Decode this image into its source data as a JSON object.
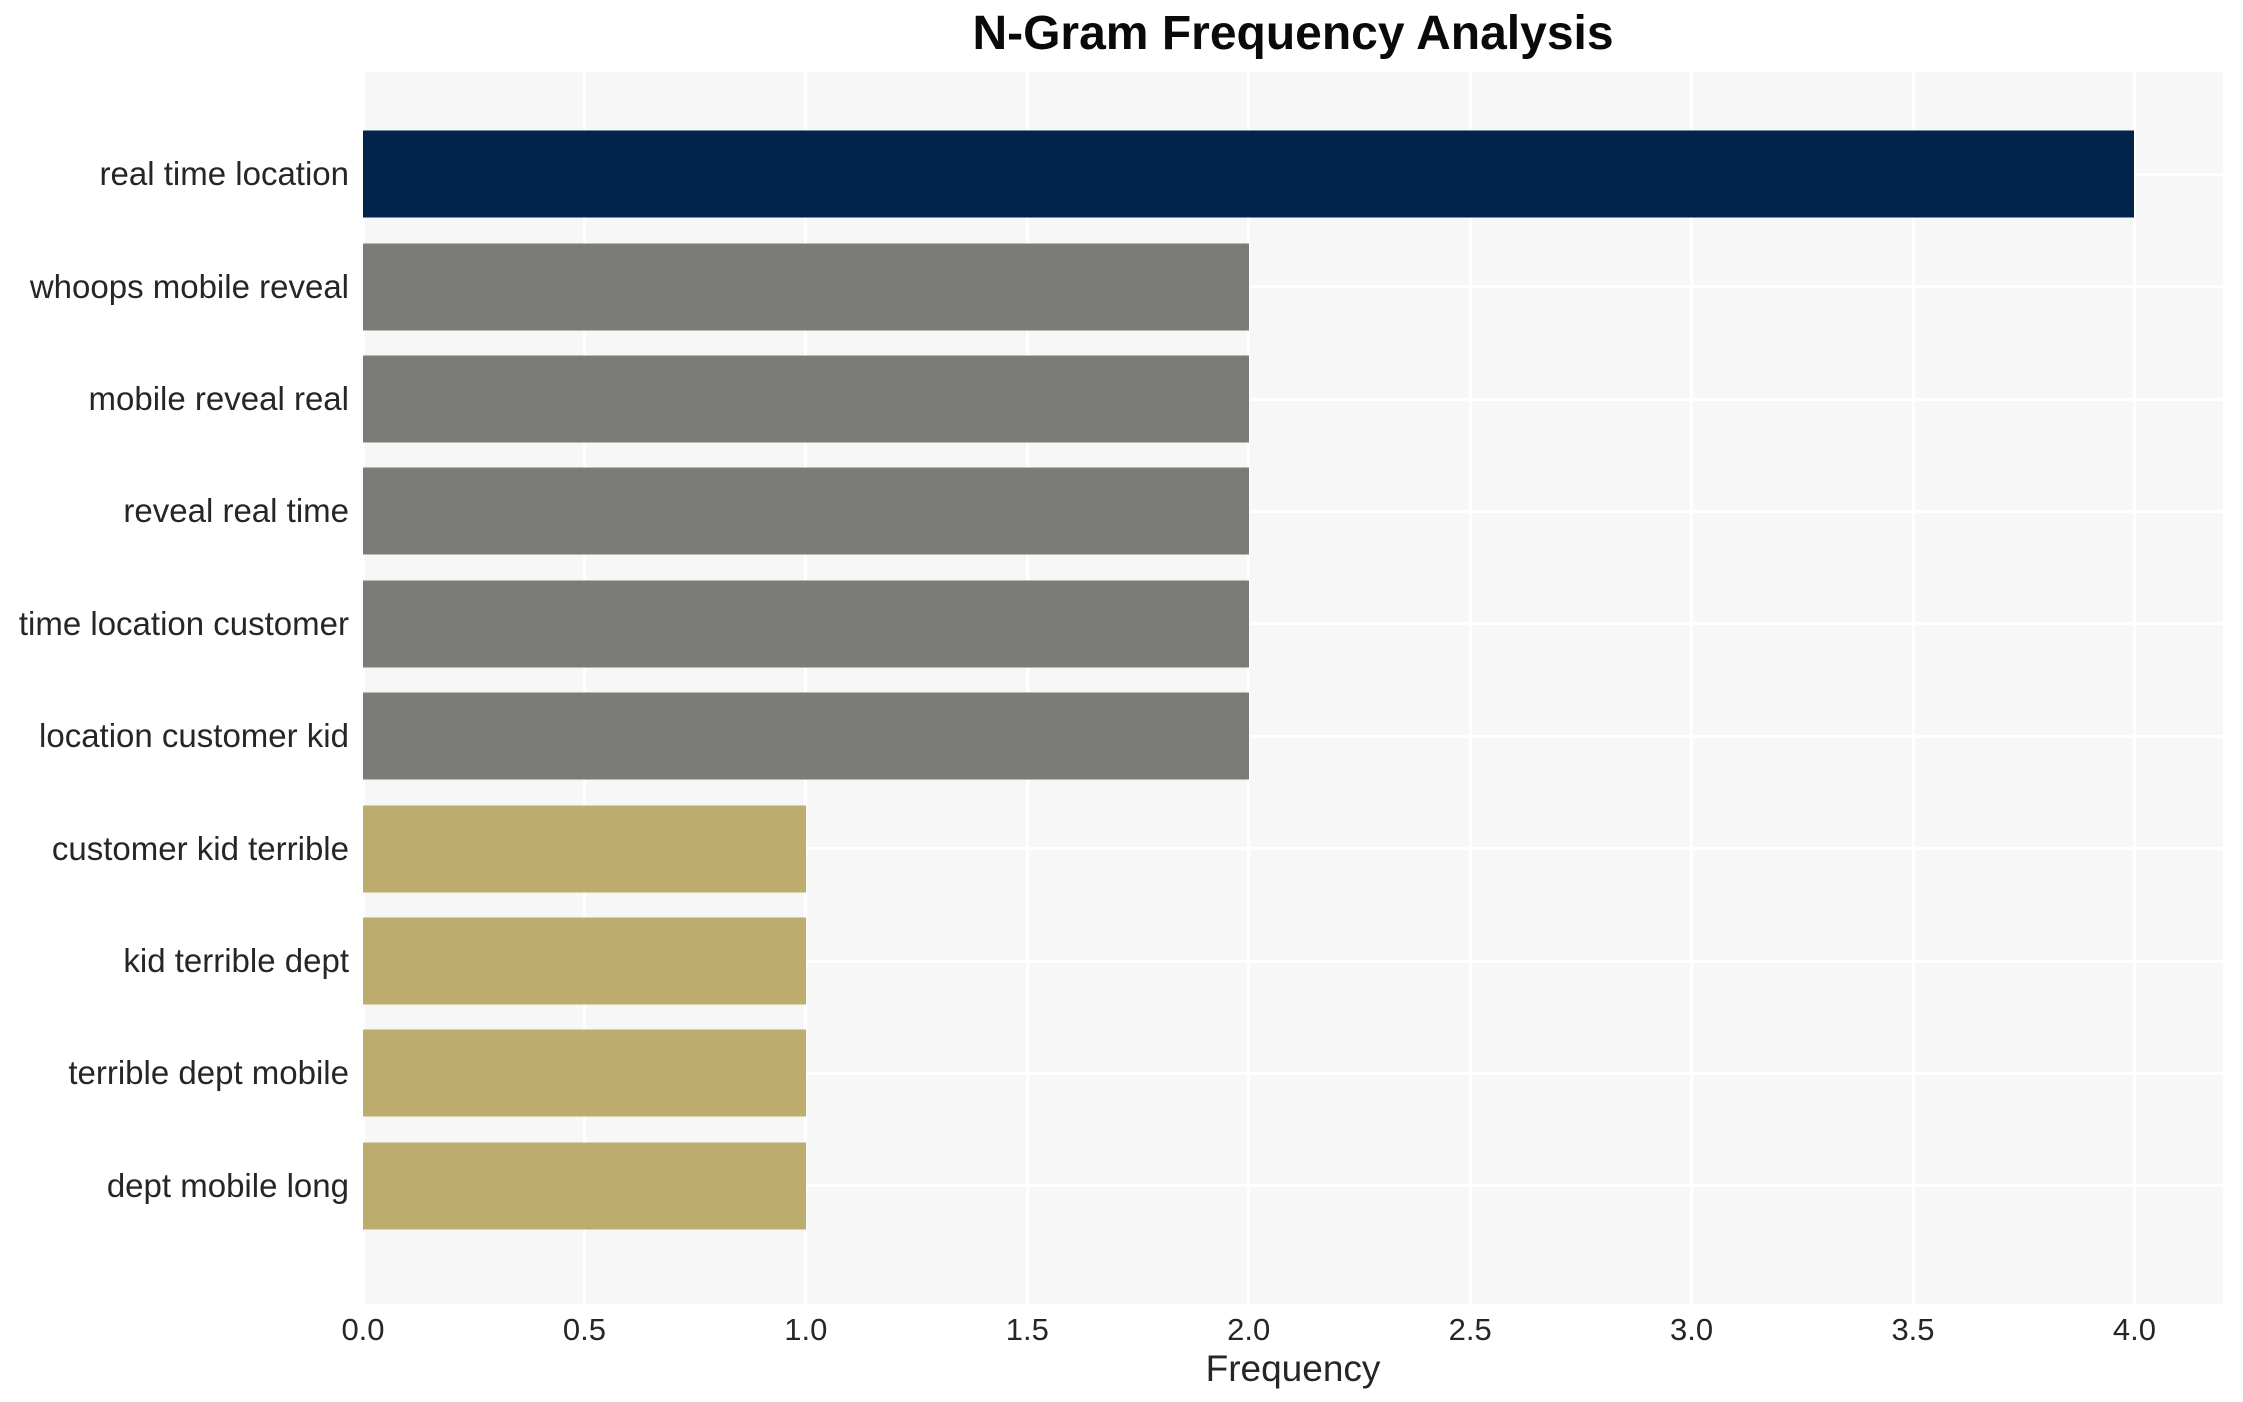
{
  "chart_data": {
    "type": "bar",
    "orientation": "horizontal",
    "title": "N-Gram Frequency Analysis",
    "xlabel": "Frequency",
    "ylabel": "",
    "categories": [
      "real time location",
      "whoops mobile reveal",
      "mobile reveal real",
      "reveal real time",
      "time location customer",
      "location customer kid",
      "customer kid terrible",
      "kid terrible dept",
      "terrible dept mobile",
      "dept mobile long"
    ],
    "values": [
      4,
      2,
      2,
      2,
      2,
      2,
      1,
      1,
      1,
      1
    ],
    "bar_colors": [
      "#02234c",
      "#7b7b77",
      "#7b7b77",
      "#7b7b77",
      "#7b7b77",
      "#7b7b77",
      "#bcad6e",
      "#bcad6e",
      "#bcad6e",
      "#bcad6e"
    ],
    "xtick_labels": [
      "0.0",
      "0.5",
      "1.0",
      "1.5",
      "2.0",
      "2.5",
      "3.0",
      "3.5",
      "4.0"
    ],
    "xtick_values": [
      0,
      0.5,
      1,
      1.5,
      2,
      2.5,
      3,
      3.5,
      4
    ],
    "xlim": [
      0,
      4.2
    ],
    "grid": "on",
    "legend": "none",
    "plot_background_color": "#f7f7f7",
    "gridline_color": "#ffffff",
    "text_color": "#262626",
    "title_color": "#0a0a0a"
  }
}
